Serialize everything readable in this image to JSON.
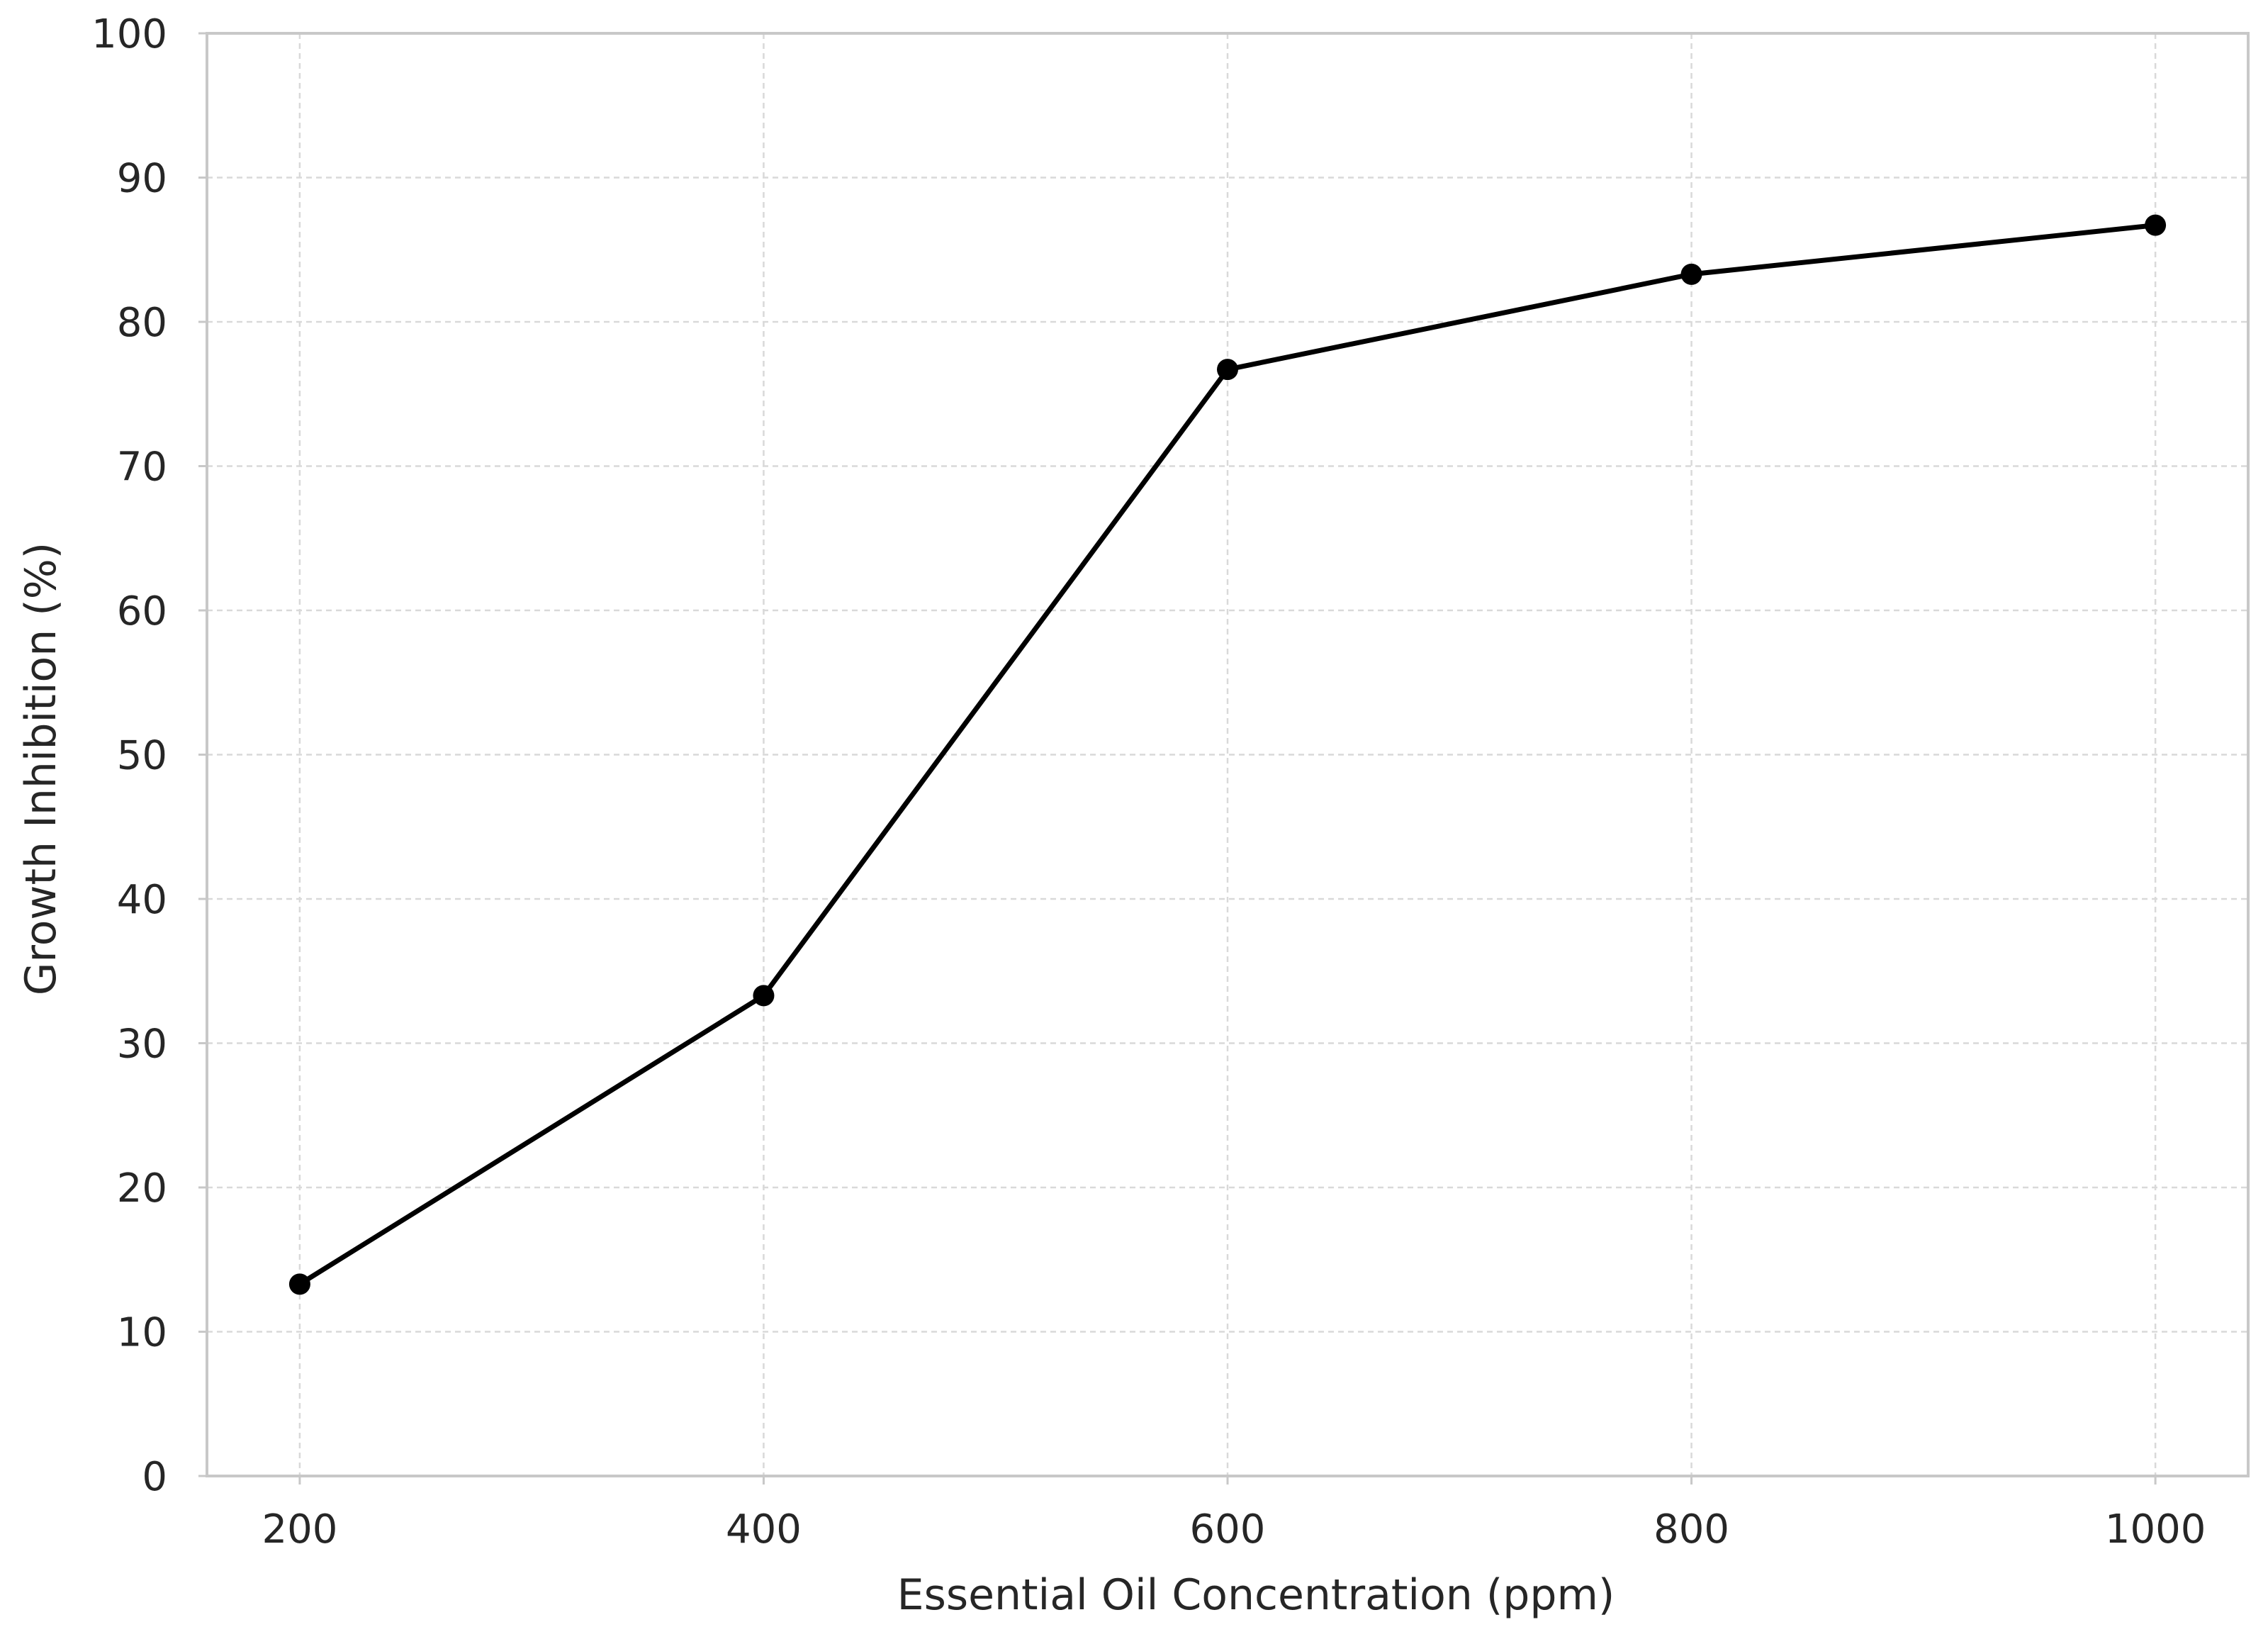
{
  "chart_data": {
    "type": "line",
    "title": "",
    "xlabel": "Essential Oil Concentration (ppm)",
    "ylabel": "Growth Inhibition (%)",
    "x": [
      200,
      400,
      600,
      800,
      1000
    ],
    "series": [
      {
        "values": [
          13.3,
          33.3,
          76.7,
          83.3,
          86.7
        ],
        "color": "#000000",
        "marker": "circle"
      }
    ],
    "xlim": [
      160,
      1040
    ],
    "ylim": [
      0,
      100
    ],
    "xticks": [
      200,
      400,
      600,
      800,
      1000
    ],
    "yticks": [
      0,
      10,
      20,
      30,
      40,
      50,
      60,
      70,
      80,
      90,
      100
    ],
    "grid": true,
    "legend": "none"
  }
}
